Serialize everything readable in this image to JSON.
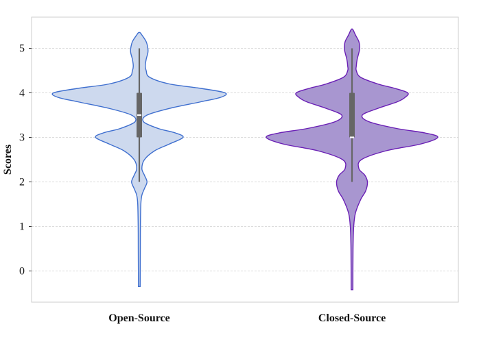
{
  "chart_data": {
    "type": "violin",
    "title": "",
    "xlabel": "",
    "ylabel": "Scores",
    "categories": [
      "Open-Source",
      "Closed-Source"
    ],
    "ylim": [
      -0.7,
      5.7
    ],
    "yticks": [
      0,
      1,
      2,
      3,
      4,
      5
    ],
    "grid": "horizontal-dashed",
    "series": [
      {
        "category": "Open-Source",
        "fill": "#cdd9ee",
        "edge": "#3f6fcf",
        "box": {
          "whisker_low": 2,
          "q1": 3,
          "median": 3.5,
          "q3": 4,
          "whisker_high": 5
        },
        "range": [
          -0.35,
          5.35
        ],
        "density": [
          [
            -0.35,
            0.01
          ],
          [
            0.5,
            0.012
          ],
          [
            1.0,
            0.013
          ],
          [
            1.5,
            0.018
          ],
          [
            1.7,
            0.03
          ],
          [
            1.85,
            0.06
          ],
          [
            2.0,
            0.09
          ],
          [
            2.15,
            0.06
          ],
          [
            2.3,
            0.03
          ],
          [
            2.5,
            0.06
          ],
          [
            2.7,
            0.18
          ],
          [
            2.85,
            0.35
          ],
          [
            3.0,
            0.51
          ],
          [
            3.1,
            0.42
          ],
          [
            3.2,
            0.22
          ],
          [
            3.35,
            0.05
          ],
          [
            3.5,
            0.09
          ],
          [
            3.65,
            0.35
          ],
          [
            3.8,
            0.72
          ],
          [
            3.9,
            0.95
          ],
          [
            4.0,
            1.0
          ],
          [
            4.1,
            0.72
          ],
          [
            4.2,
            0.35
          ],
          [
            4.35,
            0.12
          ],
          [
            4.5,
            0.08
          ],
          [
            4.6,
            0.07
          ],
          [
            4.75,
            0.08
          ],
          [
            4.9,
            0.1
          ],
          [
            5.0,
            0.1
          ],
          [
            5.15,
            0.08
          ],
          [
            5.3,
            0.03
          ],
          [
            5.35,
            0.01
          ]
        ]
      },
      {
        "category": "Closed-Source",
        "fill": "#a896d0",
        "edge": "#6a1fb5",
        "box": {
          "whisker_low": 2,
          "q1": 3,
          "median": 3,
          "q3": 4,
          "whisker_high": 5
        },
        "range": [
          -0.42,
          5.42
        ],
        "density": [
          [
            -0.42,
            0.01
          ],
          [
            0.5,
            0.012
          ],
          [
            1.0,
            0.02
          ],
          [
            1.3,
            0.04
          ],
          [
            1.6,
            0.1
          ],
          [
            1.8,
            0.16
          ],
          [
            2.0,
            0.18
          ],
          [
            2.15,
            0.15
          ],
          [
            2.3,
            0.08
          ],
          [
            2.5,
            0.11
          ],
          [
            2.7,
            0.4
          ],
          [
            2.85,
            0.8
          ],
          [
            3.0,
            1.0
          ],
          [
            3.1,
            0.85
          ],
          [
            3.2,
            0.52
          ],
          [
            3.35,
            0.2
          ],
          [
            3.5,
            0.12
          ],
          [
            3.65,
            0.3
          ],
          [
            3.8,
            0.53
          ],
          [
            3.9,
            0.62
          ],
          [
            4.0,
            0.65
          ],
          [
            4.1,
            0.5
          ],
          [
            4.2,
            0.3
          ],
          [
            4.35,
            0.1
          ],
          [
            4.5,
            0.05
          ],
          [
            4.6,
            0.05
          ],
          [
            4.75,
            0.06
          ],
          [
            4.9,
            0.08
          ],
          [
            5.0,
            0.09
          ],
          [
            5.15,
            0.08
          ],
          [
            5.3,
            0.04
          ],
          [
            5.42,
            0.01
          ]
        ]
      }
    ]
  }
}
